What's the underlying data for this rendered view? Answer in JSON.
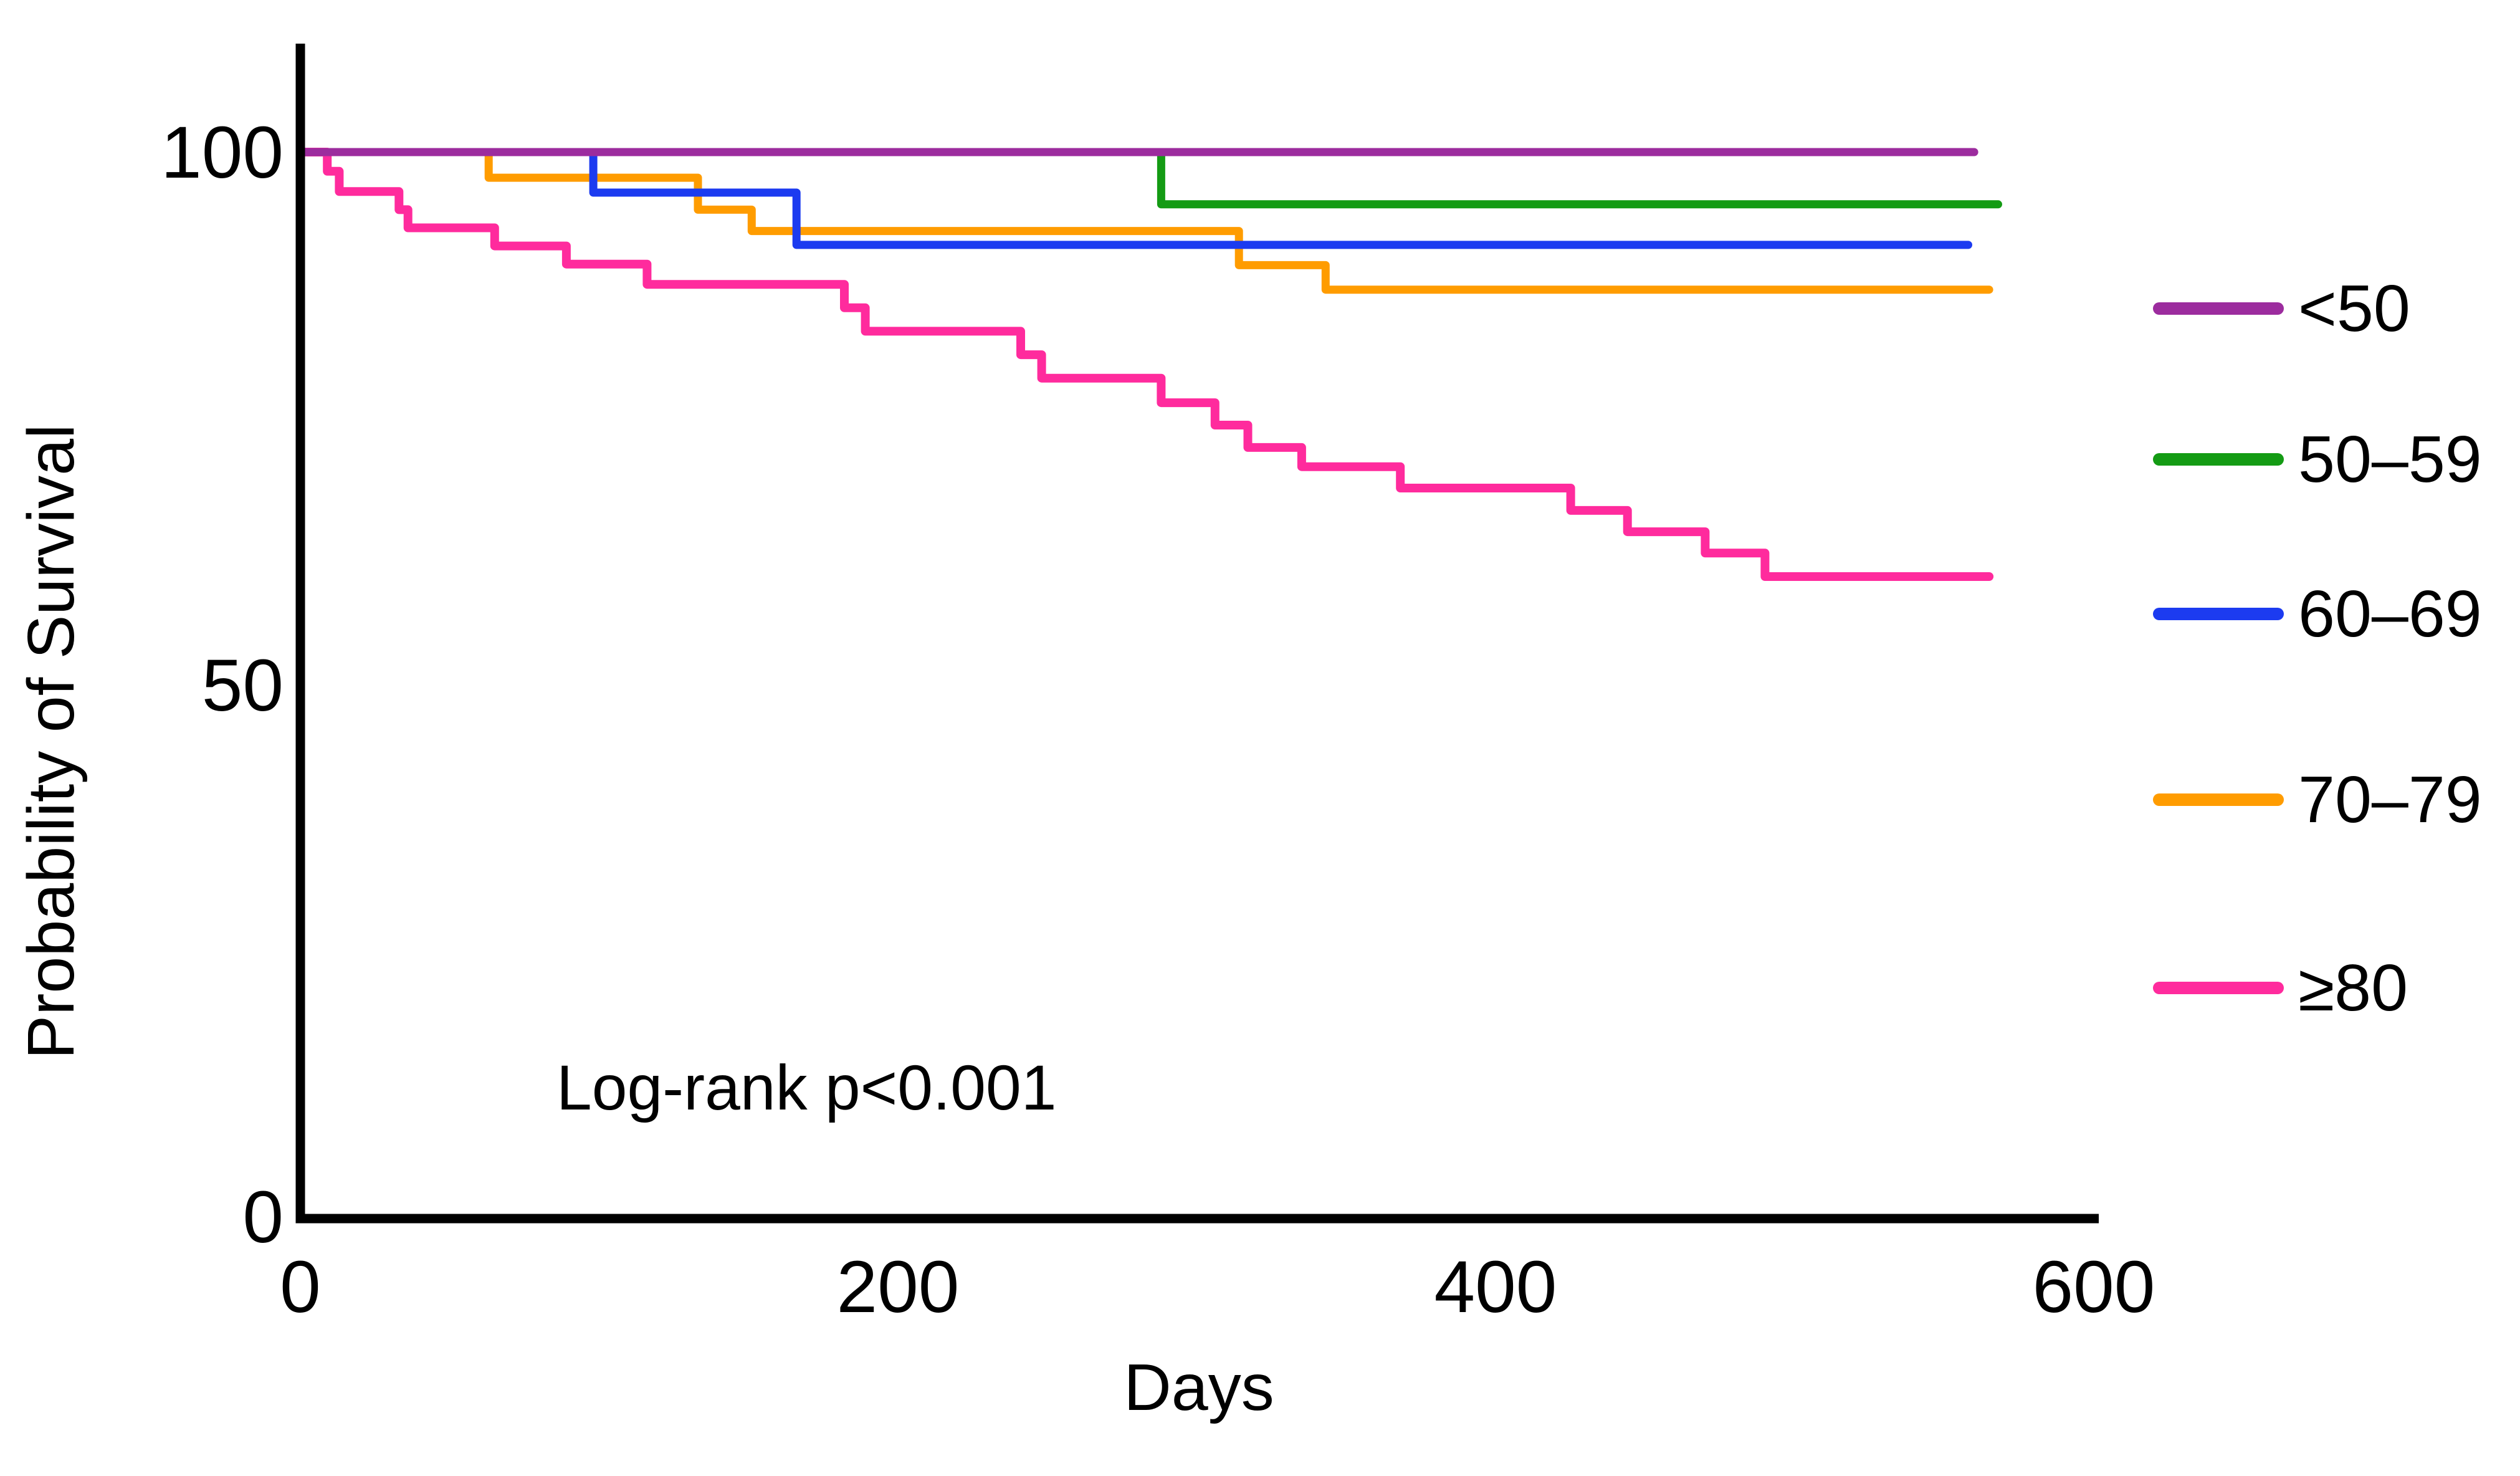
{
  "chart_data": {
    "type": "line",
    "subtype": "kaplan-meier-step-curves",
    "title": "",
    "xlabel": "Days",
    "ylabel": "Probability of Survival",
    "annotation": "Log-rank p<0.001",
    "xlim": [
      0,
      600
    ],
    "ylim": [
      0,
      100
    ],
    "x_ticks": [
      0,
      200,
      400,
      600
    ],
    "y_ticks": [
      0,
      50,
      100
    ],
    "grid": false,
    "legend_position": "right-outside",
    "axis_color": "#000000",
    "background_color": "#ffffff",
    "points_format": "[day, survival_percent_from_that_day]",
    "series": [
      {
        "name": "<50",
        "color": "#9C2C9E",
        "points": [
          [
            0,
            100
          ],
          [
            560,
            100
          ]
        ]
      },
      {
        "name": "50–59",
        "color": "#149B14",
        "points": [
          [
            0,
            100
          ],
          [
            288,
            95.1
          ],
          [
            568,
            95.1
          ]
        ]
      },
      {
        "name": "60–69",
        "color": "#1C3BF0",
        "points": [
          [
            0,
            100
          ],
          [
            98,
            96.2
          ],
          [
            166,
            91.3
          ],
          [
            558,
            91.3
          ]
        ]
      },
      {
        "name": "70–79",
        "color": "#FF9C00",
        "points": [
          [
            0,
            100
          ],
          [
            63,
            97.6
          ],
          [
            133,
            94.6
          ],
          [
            151,
            92.6
          ],
          [
            314,
            89.4
          ],
          [
            343,
            87.1
          ],
          [
            565,
            87.1
          ]
        ]
      },
      {
        "name": "≥80",
        "color": "#FF2B9D",
        "points": [
          [
            0,
            100
          ],
          [
            9,
            98.2
          ],
          [
            13,
            96.3
          ],
          [
            33,
            94.6
          ],
          [
            36,
            92.9
          ],
          [
            65,
            91.2
          ],
          [
            89,
            89.5
          ],
          [
            116,
            87.6
          ],
          [
            182,
            85.4
          ],
          [
            189,
            83.2
          ],
          [
            241,
            81.0
          ],
          [
            248,
            78.8
          ],
          [
            288,
            76.5
          ],
          [
            306,
            74.4
          ],
          [
            317,
            72.3
          ],
          [
            335,
            70.5
          ],
          [
            368,
            68.5
          ],
          [
            425,
            66.4
          ],
          [
            444,
            64.4
          ],
          [
            470,
            62.4
          ],
          [
            490,
            60.2
          ],
          [
            565,
            60.2
          ]
        ]
      }
    ]
  }
}
